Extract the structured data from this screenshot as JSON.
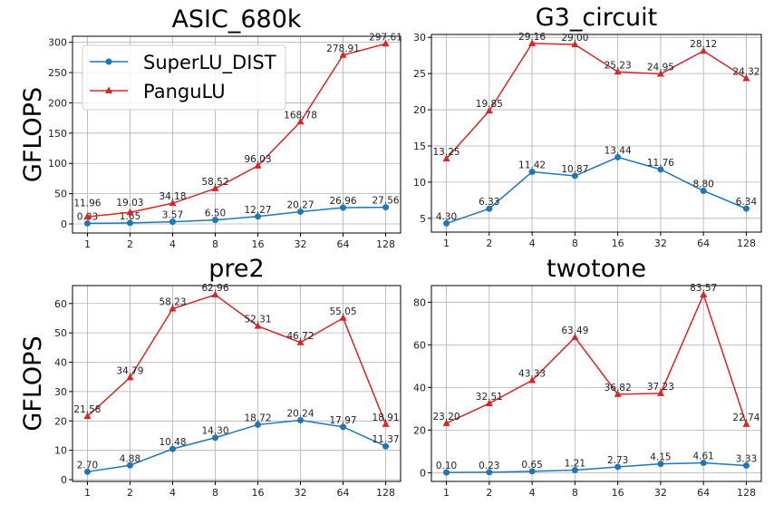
{
  "chart_data": [
    {
      "type": "line",
      "title": "ASIC_680k",
      "ylabel": "GFLOPS",
      "xlabel": "",
      "categories": [
        "1",
        "2",
        "4",
        "8",
        "16",
        "32",
        "64",
        "128"
      ],
      "ylim": [
        -15,
        310
      ],
      "yticks": [
        0,
        50,
        100,
        150,
        200,
        250,
        300
      ],
      "grid": true,
      "legend": "upper-left",
      "series": [
        {
          "name": "SuperLU_DIST",
          "color": "#1f77b4",
          "marker": "circle",
          "values": [
            0.83,
            1.65,
            3.57,
            6.5,
            12.27,
            20.27,
            26.96,
            27.56
          ],
          "labels": [
            "0.83",
            "1.65",
            "3.57",
            "6.50",
            "12.27",
            "20.27",
            "26.96",
            "27.56"
          ]
        },
        {
          "name": "PanguLU",
          "color": "#d62728",
          "marker": "triangle",
          "values": [
            11.96,
            19.03,
            34.18,
            58.52,
            96.03,
            168.78,
            278.91,
            297.61
          ],
          "labels": [
            "11.96",
            "19.03",
            "34.18",
            "58.52",
            "96.03",
            "168.78",
            "278.91",
            "297.61"
          ]
        }
      ]
    },
    {
      "type": "line",
      "title": "G3_circuit",
      "ylabel": "",
      "xlabel": "",
      "categories": [
        "1",
        "2",
        "4",
        "8",
        "16",
        "32",
        "64",
        "128"
      ],
      "ylim": [
        3.1,
        30.4
      ],
      "yticks": [
        5,
        10,
        15,
        20,
        25,
        30
      ],
      "grid": true,
      "series": [
        {
          "name": "SuperLU_DIST",
          "color": "#1f77b4",
          "marker": "circle",
          "values": [
            4.3,
            6.33,
            11.42,
            10.87,
            13.44,
            11.76,
            8.8,
            6.34
          ],
          "labels": [
            "4.30",
            "6.33",
            "11.42",
            "10.87",
            "13.44",
            "11.76",
            "8.80",
            "6.34"
          ]
        },
        {
          "name": "PanguLU",
          "color": "#d62728",
          "marker": "triangle",
          "values": [
            13.25,
            19.85,
            29.16,
            29.0,
            25.23,
            24.95,
            28.12,
            24.32
          ],
          "labels": [
            "13.25",
            "19.85",
            "29.16",
            "29.00",
            "25.23",
            "24.95",
            "28.12",
            "24.32"
          ]
        }
      ]
    },
    {
      "type": "line",
      "title": "pre2",
      "ylabel": "GFLOPS",
      "xlabel": "",
      "categories": [
        "1",
        "2",
        "4",
        "8",
        "16",
        "32",
        "64",
        "128"
      ],
      "ylim": [
        -0.6,
        66.1
      ],
      "yticks": [
        0,
        10,
        20,
        30,
        40,
        50,
        60
      ],
      "grid": true,
      "series": [
        {
          "name": "SuperLU_DIST",
          "color": "#1f77b4",
          "marker": "circle",
          "values": [
            2.7,
            4.88,
            10.48,
            14.3,
            18.72,
            20.24,
            17.97,
            11.37
          ],
          "labels": [
            "2.70",
            "4.88",
            "10.48",
            "14.30",
            "18.72",
            "20.24",
            "17.97",
            "11.37"
          ]
        },
        {
          "name": "PanguLU",
          "color": "#d62728",
          "marker": "triangle",
          "values": [
            21.58,
            34.79,
            58.23,
            62.96,
            52.31,
            46.72,
            55.05,
            18.91
          ],
          "labels": [
            "21.58",
            "34.79",
            "58.23",
            "62.96",
            "52.31",
            "46.72",
            "55.05",
            "18.91"
          ]
        }
      ]
    },
    {
      "type": "line",
      "title": "twotone",
      "ylabel": "",
      "xlabel": "",
      "categories": [
        "1",
        "2",
        "4",
        "8",
        "16",
        "32",
        "64",
        "128"
      ],
      "ylim": [
        -4.1,
        87.8
      ],
      "yticks": [
        0,
        20,
        40,
        60,
        80
      ],
      "grid": true,
      "series": [
        {
          "name": "SuperLU_DIST",
          "color": "#1f77b4",
          "marker": "circle",
          "values": [
            0.1,
            0.23,
            0.65,
            1.21,
            2.73,
            4.15,
            4.61,
            3.33
          ],
          "labels": [
            "0.10",
            "0.23",
            "0.65",
            "1.21",
            "2.73",
            "4.15",
            "4.61",
            "3.33"
          ]
        },
        {
          "name": "PanguLU",
          "color": "#d62728",
          "marker": "triangle",
          "values": [
            23.2,
            32.51,
            43.33,
            63.49,
            36.82,
            37.23,
            83.57,
            22.74
          ],
          "labels": [
            "23.20",
            "32.51",
            "43.33",
            "63.49",
            "36.82",
            "37.23",
            "83.57",
            "22.74"
          ]
        }
      ]
    }
  ]
}
